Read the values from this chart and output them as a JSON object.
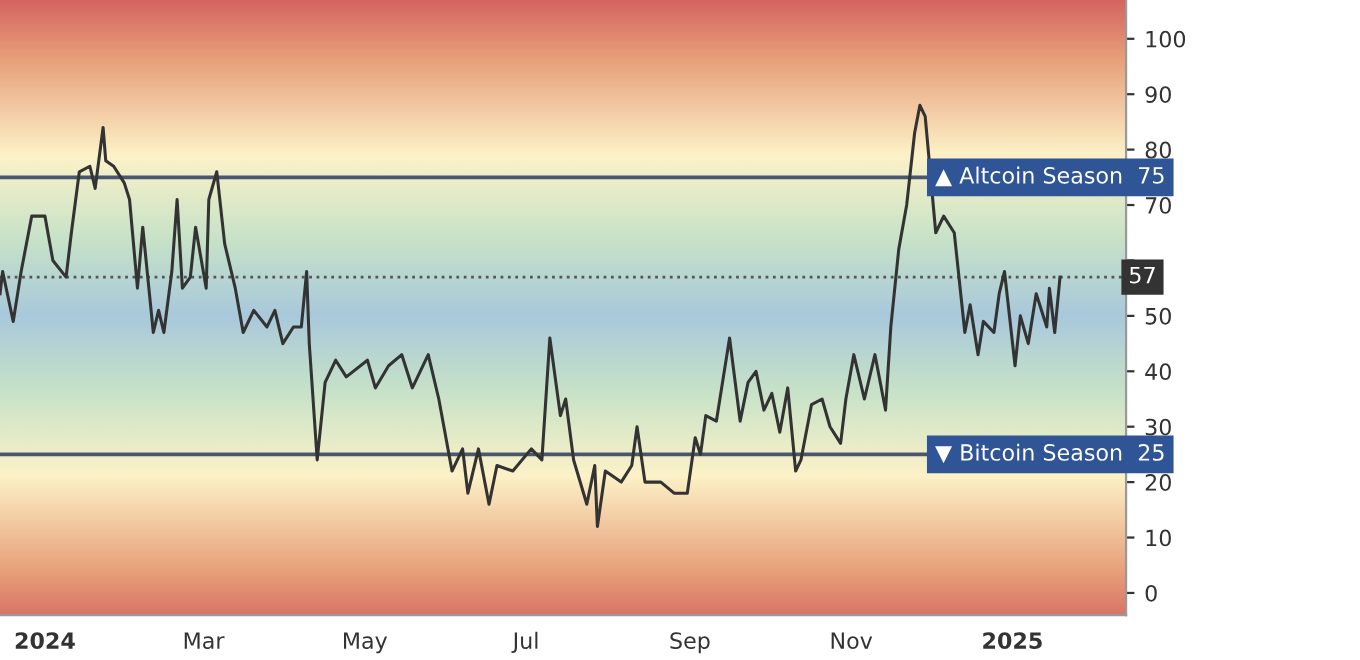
{
  "chart_data": {
    "type": "line",
    "x": [
      "2023-12-15",
      "2023-12-16",
      "2023-12-20",
      "2023-12-23",
      "2023-12-27",
      "2024-01-01",
      "2024-01-04",
      "2024-01-09",
      "2024-01-11",
      "2024-01-14",
      "2024-01-18",
      "2024-01-20",
      "2024-01-23",
      "2024-01-24",
      "2024-01-27",
      "2024-01-31",
      "2024-02-02",
      "2024-02-05",
      "2024-02-07",
      "2024-02-11",
      "2024-02-13",
      "2024-02-15",
      "2024-02-18",
      "2024-02-20",
      "2024-02-22",
      "2024-02-25",
      "2024-02-27",
      "2024-03-02",
      "2024-03-03",
      "2024-03-06",
      "2024-03-09",
      "2024-03-13",
      "2024-03-16",
      "2024-03-20",
      "2024-03-25",
      "2024-03-28",
      "2024-03-31",
      "2024-04-04",
      "2024-04-07",
      "2024-04-09",
      "2024-04-10",
      "2024-04-13",
      "2024-04-16",
      "2024-04-20",
      "2024-04-24",
      "2024-05-02",
      "2024-05-05",
      "2024-05-10",
      "2024-05-15",
      "2024-05-19",
      "2024-05-25",
      "2024-05-29",
      "2024-06-03",
      "2024-06-07",
      "2024-06-09",
      "2024-06-13",
      "2024-06-17",
      "2024-06-20",
      "2024-06-26",
      "2024-07-03",
      "2024-07-07",
      "2024-07-10",
      "2024-07-14",
      "2024-07-16",
      "2024-07-19",
      "2024-07-24",
      "2024-07-27",
      "2024-07-28",
      "2024-07-31",
      "2024-08-06",
      "2024-08-10",
      "2024-08-12",
      "2024-08-15",
      "2024-08-21",
      "2024-08-26",
      "2024-08-31",
      "2024-09-03",
      "2024-09-05",
      "2024-09-07",
      "2024-09-11",
      "2024-09-16",
      "2024-09-20",
      "2024-09-23",
      "2024-09-26",
      "2024-09-29",
      "2024-10-02",
      "2024-10-05",
      "2024-10-08",
      "2024-10-11",
      "2024-10-13",
      "2024-10-17",
      "2024-10-21",
      "2024-10-24",
      "2024-10-28",
      "2024-10-30",
      "2024-11-02",
      "2024-11-06",
      "2024-11-10",
      "2024-11-14",
      "2024-11-16",
      "2024-11-19",
      "2024-11-22",
      "2024-11-25",
      "2024-11-27",
      "2024-11-29",
      "2024-12-03",
      "2024-12-06",
      "2024-12-10",
      "2024-12-14",
      "2024-12-16",
      "2024-12-19",
      "2024-12-21",
      "2024-12-25",
      "2024-12-27",
      "2024-12-29",
      "2025-01-02",
      "2025-01-04",
      "2025-01-07",
      "2025-01-10",
      "2025-01-14",
      "2025-01-15",
      "2025-01-17",
      "2025-01-19"
    ],
    "series": [
      {
        "color": "#333333",
        "values": [
          54,
          58,
          49,
          58,
          68,
          68,
          60,
          57,
          65,
          76,
          77,
          73,
          84,
          78,
          77,
          74,
          71,
          55,
          66,
          47,
          51,
          47,
          58,
          71,
          55,
          57,
          66,
          55,
          71,
          76,
          63,
          55,
          47,
          51,
          48,
          51,
          45,
          48,
          48,
          58,
          45,
          24,
          38,
          42,
          39,
          42,
          37,
          41,
          43,
          37,
          43,
          35,
          22,
          26,
          18,
          26,
          16,
          23,
          22,
          26,
          24,
          46,
          32,
          35,
          24,
          16,
          23,
          12,
          22,
          20,
          23,
          30,
          20,
          20,
          18,
          18,
          28,
          25,
          32,
          31,
          46,
          31,
          38,
          40,
          33,
          36,
          29,
          37,
          22,
          24,
          34,
          35,
          30,
          27,
          35,
          43,
          35,
          43,
          33,
          48,
          62,
          70,
          83,
          88,
          86,
          65,
          68,
          65,
          47,
          52,
          43,
          49,
          47,
          54,
          58,
          41,
          50,
          45,
          54,
          48,
          55,
          47,
          57
        ]
      }
    ],
    "xlim": [
      "2023-12-15",
      "2025-02-13"
    ],
    "xticks": [
      {
        "value": "2024-01-01",
        "label": "2024"
      },
      {
        "value": "2024-03-01",
        "label": "Mar"
      },
      {
        "value": "2024-05-01",
        "label": "May"
      },
      {
        "value": "2024-07-01",
        "label": "Jul"
      },
      {
        "value": "2024-09-01",
        "label": "Sep"
      },
      {
        "value": "2024-11-01",
        "label": "Nov"
      },
      {
        "value": "2025-01-01",
        "label": "2025"
      }
    ],
    "ylim": [
      -4,
      107
    ],
    "yticks": [
      0,
      10,
      20,
      30,
      40,
      50,
      {
        "value": 60,
        "label": null
      },
      70,
      80,
      90,
      100
    ],
    "ref_lines": [
      {
        "axis": "y",
        "value": 75,
        "label": "▲ Altcoin Season  75",
        "color": "#4a5670",
        "line_style": "solid"
      },
      {
        "axis": "y",
        "value": 25,
        "label": "▼ Bitcoin Season  25",
        "color": "#4a5670",
        "line_style": "solid"
      },
      {
        "axis": "y",
        "value": 57,
        "label": "57",
        "color": "#555555",
        "line_style": "dotted"
      }
    ],
    "grid": false,
    "marker": "none",
    "line_style": "solid"
  }
}
